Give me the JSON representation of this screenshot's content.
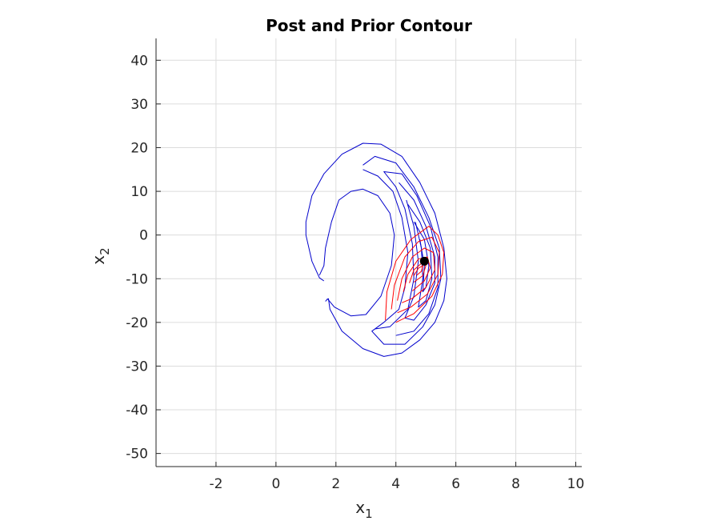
{
  "chart_data": {
    "type": "line",
    "title": "Post and Prior Contour",
    "xlabel": {
      "base": "x",
      "sub": "1"
    },
    "ylabel": {
      "base": "x",
      "sub": "2"
    },
    "xlim": [
      -4,
      10.2
    ],
    "ylim": [
      -53,
      45
    ],
    "xticks": [
      -2,
      0,
      2,
      4,
      6,
      8,
      10
    ],
    "yticks": [
      40,
      30,
      20,
      10,
      0,
      -10,
      -20,
      -30,
      -40,
      -50
    ],
    "grid": true,
    "colors": {
      "prior": "#0000cc",
      "posterior": "#ff0000",
      "point": "#000000",
      "grid": "#dcdcdc",
      "axis": "#262626"
    },
    "series": [
      {
        "kind": "prior",
        "contours": [
          [
            [
              1.6,
              -10.5
            ],
            [
              1.45,
              -9.8
            ],
            [
              1.2,
              -6
            ],
            [
              1.0,
              0
            ],
            [
              1.0,
              3
            ],
            [
              1.2,
              9
            ],
            [
              1.6,
              14
            ],
            [
              2.2,
              18.5
            ],
            [
              2.9,
              21
            ],
            [
              3.5,
              20.8
            ],
            [
              4.2,
              18
            ],
            [
              4.8,
              12
            ],
            [
              5.3,
              5
            ],
            [
              5.6,
              -3
            ],
            [
              5.7,
              -10
            ],
            [
              5.6,
              -15
            ],
            [
              5.3,
              -20
            ],
            [
              4.8,
              -24
            ],
            [
              4.2,
              -27
            ],
            [
              3.6,
              -27.8
            ],
            [
              2.9,
              -26
            ],
            [
              2.2,
              -22
            ],
            [
              1.8,
              -17
            ],
            [
              1.75,
              -14.5
            ]
          ],
          [
            [
              1.65,
              -15.2
            ],
            [
              1.72,
              -14.6
            ],
            [
              1.95,
              -16.5
            ],
            [
              2.5,
              -18.5
            ],
            [
              3.0,
              -18.2
            ],
            [
              3.5,
              -14
            ],
            [
              3.85,
              -7
            ],
            [
              3.95,
              0
            ],
            [
              3.8,
              5
            ],
            [
              3.4,
              9
            ],
            [
              2.9,
              10.5
            ],
            [
              2.5,
              10
            ],
            [
              2.1,
              8
            ],
            [
              1.85,
              3
            ],
            [
              1.65,
              -3
            ],
            [
              1.6,
              -7
            ],
            [
              1.45,
              -9.2
            ]
          ],
          [
            [
              2.9,
              16
            ],
            [
              3.3,
              18
            ],
            [
              4.0,
              16.5
            ],
            [
              4.6,
              11
            ],
            [
              5.1,
              4
            ],
            [
              5.45,
              -3
            ],
            [
              5.5,
              -10
            ],
            [
              5.3,
              -16
            ],
            [
              4.9,
              -21
            ],
            [
              4.3,
              -25
            ],
            [
              3.6,
              -25
            ],
            [
              3.2,
              -22
            ],
            [
              3.6,
              -20
            ],
            [
              4.1,
              -17
            ],
            [
              4.3,
              -12
            ],
            [
              4.4,
              -4
            ],
            [
              4.2,
              4
            ],
            [
              3.9,
              10
            ],
            [
              3.4,
              13.5
            ],
            [
              2.9,
              15
            ]
          ],
          [
            [
              3.3,
              -21.5
            ],
            [
              3.8,
              -21
            ],
            [
              4.4,
              -17
            ],
            [
              4.6,
              -10
            ],
            [
              4.55,
              -2
            ],
            [
              4.3,
              6
            ],
            [
              4.0,
              11
            ],
            [
              3.6,
              14.5
            ],
            [
              4.2,
              14
            ],
            [
              4.7,
              9
            ],
            [
              5.15,
              2
            ],
            [
              5.4,
              -5
            ],
            [
              5.4,
              -12
            ],
            [
              5.1,
              -18
            ],
            [
              4.6,
              -22
            ],
            [
              4.0,
              -23
            ]
          ],
          [
            [
              4.1,
              12
            ],
            [
              4.6,
              8
            ],
            [
              5.0,
              2
            ],
            [
              5.3,
              -5
            ],
            [
              5.3,
              -11
            ],
            [
              5.0,
              -16
            ],
            [
              4.6,
              -19.5
            ],
            [
              4.3,
              -19
            ],
            [
              4.6,
              -14
            ],
            [
              4.75,
              -6
            ],
            [
              4.6,
              2
            ],
            [
              4.35,
              8
            ]
          ],
          [
            [
              4.4,
              7
            ],
            [
              4.8,
              3
            ],
            [
              5.15,
              -3
            ],
            [
              5.2,
              -10
            ],
            [
              5.0,
              -15
            ],
            [
              4.75,
              -16.5
            ],
            [
              4.9,
              -10
            ],
            [
              4.85,
              -3
            ],
            [
              4.65,
              3
            ]
          ],
          [
            [
              4.6,
              3
            ],
            [
              4.95,
              -1
            ],
            [
              5.1,
              -7
            ],
            [
              5.0,
              -12
            ],
            [
              4.9,
              -13
            ],
            [
              4.95,
              -7
            ],
            [
              4.8,
              -1
            ]
          ]
        ]
      },
      {
        "kind": "posterior",
        "contours": [
          [
            [
              3.65,
              -19.5
            ],
            [
              3.7,
              -13
            ],
            [
              4.0,
              -6
            ],
            [
              4.5,
              -1
            ],
            [
              5.1,
              2
            ],
            [
              5.4,
              0
            ],
            [
              5.6,
              -4
            ],
            [
              5.55,
              -9
            ],
            [
              5.2,
              -14
            ],
            [
              4.6,
              -18
            ],
            [
              4.0,
              -20
            ]
          ],
          [
            [
              3.85,
              -17
            ],
            [
              3.95,
              -11.5
            ],
            [
              4.3,
              -5
            ],
            [
              4.75,
              -1.5
            ],
            [
              5.2,
              -0.5
            ],
            [
              5.45,
              -4
            ],
            [
              5.4,
              -9
            ],
            [
              5.05,
              -13.5
            ],
            [
              4.5,
              -16.5
            ],
            [
              4.05,
              -17.8
            ]
          ],
          [
            [
              4.05,
              -15
            ],
            [
              4.2,
              -10
            ],
            [
              4.55,
              -5
            ],
            [
              4.95,
              -3
            ],
            [
              5.25,
              -4
            ],
            [
              5.3,
              -8
            ],
            [
              5.0,
              -12
            ],
            [
              4.55,
              -14.5
            ],
            [
              4.2,
              -15.5
            ]
          ],
          [
            [
              4.25,
              -13
            ],
            [
              4.4,
              -9
            ],
            [
              4.75,
              -5.5
            ],
            [
              5.05,
              -5
            ],
            [
              5.15,
              -7.5
            ],
            [
              4.95,
              -10.5
            ],
            [
              4.55,
              -12.8
            ]
          ],
          [
            [
              4.45,
              -11
            ],
            [
              4.6,
              -8
            ],
            [
              4.85,
              -6.5
            ],
            [
              5.0,
              -7
            ],
            [
              4.9,
              -9.3
            ],
            [
              4.6,
              -10.8
            ]
          ],
          [
            [
              4.6,
              -9.3
            ],
            [
              4.75,
              -7.6
            ],
            [
              4.9,
              -7
            ],
            [
              4.85,
              -8.3
            ],
            [
              4.7,
              -9.2
            ]
          ]
        ]
      }
    ],
    "point": {
      "x": 4.95,
      "y": -6
    }
  }
}
